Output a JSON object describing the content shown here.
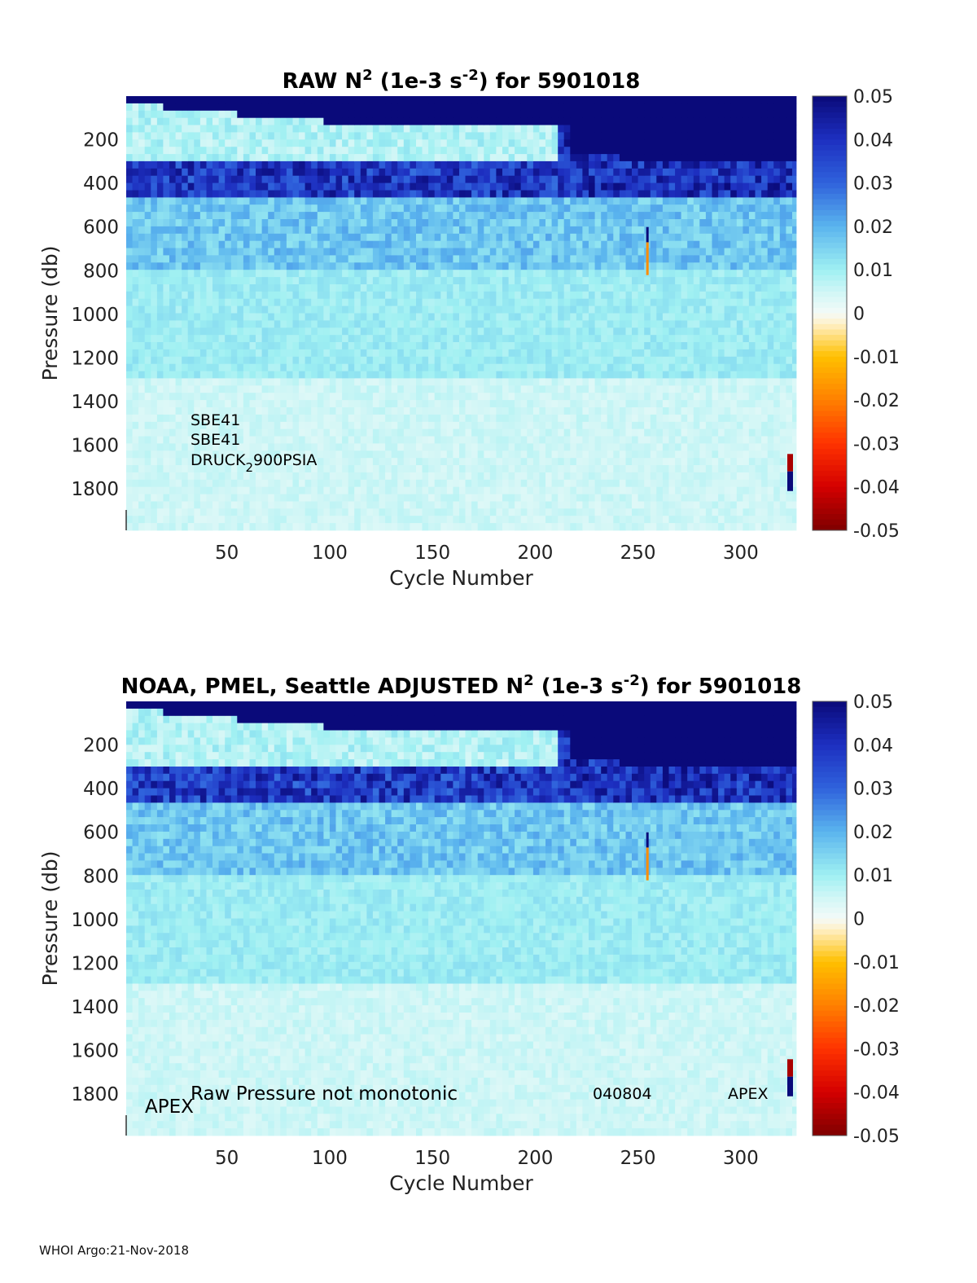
{
  "footer": "WHOI Argo:21-Nov-2018",
  "colormap": {
    "stops": [
      {
        "v": -0.05,
        "c": "#7f0000"
      },
      {
        "v": -0.04,
        "c": "#d40000"
      },
      {
        "v": -0.03,
        "c": "#ff3300"
      },
      {
        "v": -0.02,
        "c": "#ff8000"
      },
      {
        "v": -0.01,
        "c": "#ffc000"
      },
      {
        "v": -0.0025,
        "c": "#fff0c8"
      },
      {
        "v": 0.0,
        "c": "#f4fbf8"
      },
      {
        "v": 0.005,
        "c": "#cff6f6"
      },
      {
        "v": 0.01,
        "c": "#9ff0f2"
      },
      {
        "v": 0.02,
        "c": "#5ab4ee"
      },
      {
        "v": 0.03,
        "c": "#2f62dc"
      },
      {
        "v": 0.04,
        "c": "#1d2fc0"
      },
      {
        "v": 0.05,
        "c": "#0a0a7a"
      }
    ]
  },
  "chart_data": [
    {
      "type": "heatmap",
      "title_parts": [
        "RAW N",
        "2",
        " (1e-3 s",
        "-2",
        ") for 5901018"
      ],
      "xlabel": "Cycle Number",
      "ylabel": "Pressure (db)",
      "xlim": [
        1,
        327
      ],
      "ylim": [
        1990,
        0
      ],
      "xticks": [
        50,
        100,
        150,
        200,
        250,
        300
      ],
      "yticks": [
        200,
        400,
        600,
        800,
        1000,
        1200,
        1400,
        1600,
        1800
      ],
      "clim": [
        -0.05,
        0.05
      ],
      "cticks": [
        0.05,
        0.04,
        0.03,
        0.02,
        0.01,
        0,
        -0.01,
        -0.02,
        -0.03,
        -0.04,
        -0.05
      ],
      "annotations": [
        {
          "text": "SBE41"
        },
        {
          "text": "SBE41"
        },
        {
          "text_parts": [
            "DRUCK",
            "2",
            "900PSIA"
          ]
        }
      ]
    },
    {
      "type": "heatmap",
      "title_parts": [
        "NOAA, PMEL, Seattle  ADJUSTED N",
        "2",
        " (1e-3 s",
        "-2",
        ") for 5901018"
      ],
      "xlabel": "Cycle Number",
      "ylabel": "Pressure (db)",
      "xlim": [
        1,
        327
      ],
      "ylim": [
        1990,
        0
      ],
      "xticks": [
        50,
        100,
        150,
        200,
        250,
        300
      ],
      "yticks": [
        200,
        400,
        600,
        800,
        1000,
        1200,
        1400,
        1600,
        1800
      ],
      "clim": [
        -0.05,
        0.05
      ],
      "cticks": [
        0.05,
        0.04,
        0.03,
        0.02,
        0.01,
        0,
        -0.01,
        -0.02,
        -0.03,
        -0.04,
        -0.05
      ],
      "annotations": [
        {
          "text": "APEX"
        },
        {
          "text": "Raw Pressure not monotonic"
        },
        {
          "text": "040804"
        },
        {
          "text": "APEX"
        }
      ]
    }
  ]
}
